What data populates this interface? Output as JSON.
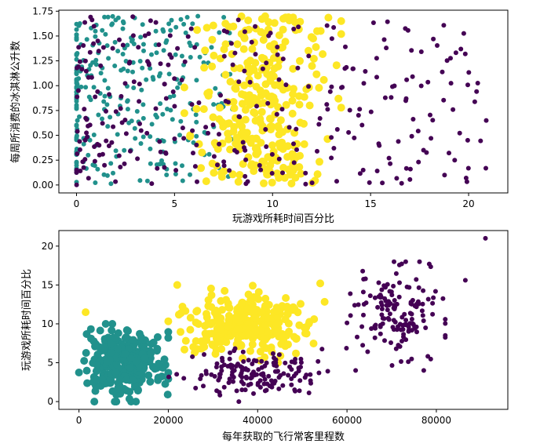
{
  "chart_data": [
    {
      "type": "scatter",
      "xlabel": "玩游戏所耗时间百分比",
      "ylabel": "每周所消费的冰淇淋公升数",
      "xlim": [
        -0.9,
        22.0
      ],
      "ylim": [
        -0.08,
        1.76
      ],
      "xticks": [
        0,
        5,
        10,
        15,
        20
      ],
      "yticks": [
        0.0,
        0.25,
        0.5,
        0.75,
        1.0,
        1.25,
        1.5,
        1.75
      ],
      "ytick_labels": [
        "0.00",
        "0.25",
        "0.50",
        "0.75",
        "1.00",
        "1.25",
        "1.50",
        "1.75"
      ],
      "grid": false,
      "colors": {
        "class1": "#440154",
        "class2": "#21918c",
        "class3": "#fde725"
      },
      "clusters": [
        {
          "class": "class2",
          "size": "small",
          "x_range": [
            0,
            8
          ],
          "y_range": [
            0,
            1.7
          ],
          "count": 300
        },
        {
          "class": "class3",
          "size": "large",
          "x_range": [
            5.5,
            13.5
          ],
          "y_range": [
            0,
            1.7
          ],
          "count": 300
        },
        {
          "class": "class1",
          "size": "small",
          "x_range": [
            0,
            21
          ],
          "y_range": [
            0,
            1.7
          ],
          "count": 300
        }
      ],
      "notable_points": [
        {
          "class": "class1",
          "x": 20.9,
          "y": 0.65
        },
        {
          "class": "class1",
          "x": 18.2,
          "y": 1.47
        },
        {
          "class": "class1",
          "x": 17.7,
          "y": 0.35
        },
        {
          "class": "class1",
          "x": 17.1,
          "y": 0.49
        },
        {
          "class": "class1",
          "x": 15.6,
          "y": 0.02
        },
        {
          "class": "class1",
          "x": 15.8,
          "y": 1.38
        }
      ]
    },
    {
      "type": "scatter",
      "xlabel": "每年获取的飞行常客里程数",
      "ylabel": "玩游戏所耗时间百分比",
      "xlim": [
        -4500,
        96000
      ],
      "ylim": [
        -1.0,
        22.0
      ],
      "xticks": [
        0,
        20000,
        40000,
        60000,
        80000
      ],
      "yticks": [
        0,
        5,
        10,
        15,
        20
      ],
      "ytick_labels": [
        "0",
        "5",
        "10",
        "15",
        "20"
      ],
      "grid": false,
      "colors": {
        "class1": "#440154",
        "class2": "#21918c",
        "class3": "#fde725"
      },
      "clusters": [
        {
          "class": "class2",
          "size": "large",
          "x_range": [
            0,
            20000
          ],
          "y_range": [
            0,
            10
          ],
          "count": 300
        },
        {
          "class": "class3",
          "size": "large",
          "x_range": [
            20000,
            55000
          ],
          "y_range": [
            5,
            15
          ],
          "count": 300
        },
        {
          "class": "class1",
          "size": "small",
          "x_range": [
            20000,
            60000
          ],
          "y_range": [
            0,
            7
          ],
          "count": 150
        },
        {
          "class": "class1",
          "size": "small",
          "x_range": [
            60000,
            82000
          ],
          "y_range": [
            4,
            18
          ],
          "count": 150
        }
      ],
      "notable_points": [
        {
          "class": "class1",
          "x": 91000,
          "y": 21.0
        },
        {
          "class": "class1",
          "x": 86500,
          "y": 15.6
        },
        {
          "class": "class1",
          "x": 82000,
          "y": 8.5
        },
        {
          "class": "class3",
          "x": 54000,
          "y": 15.2
        },
        {
          "class": "class3",
          "x": 22000,
          "y": 15.0
        },
        {
          "class": "class3",
          "x": 1500,
          "y": 11.5
        }
      ]
    }
  ]
}
